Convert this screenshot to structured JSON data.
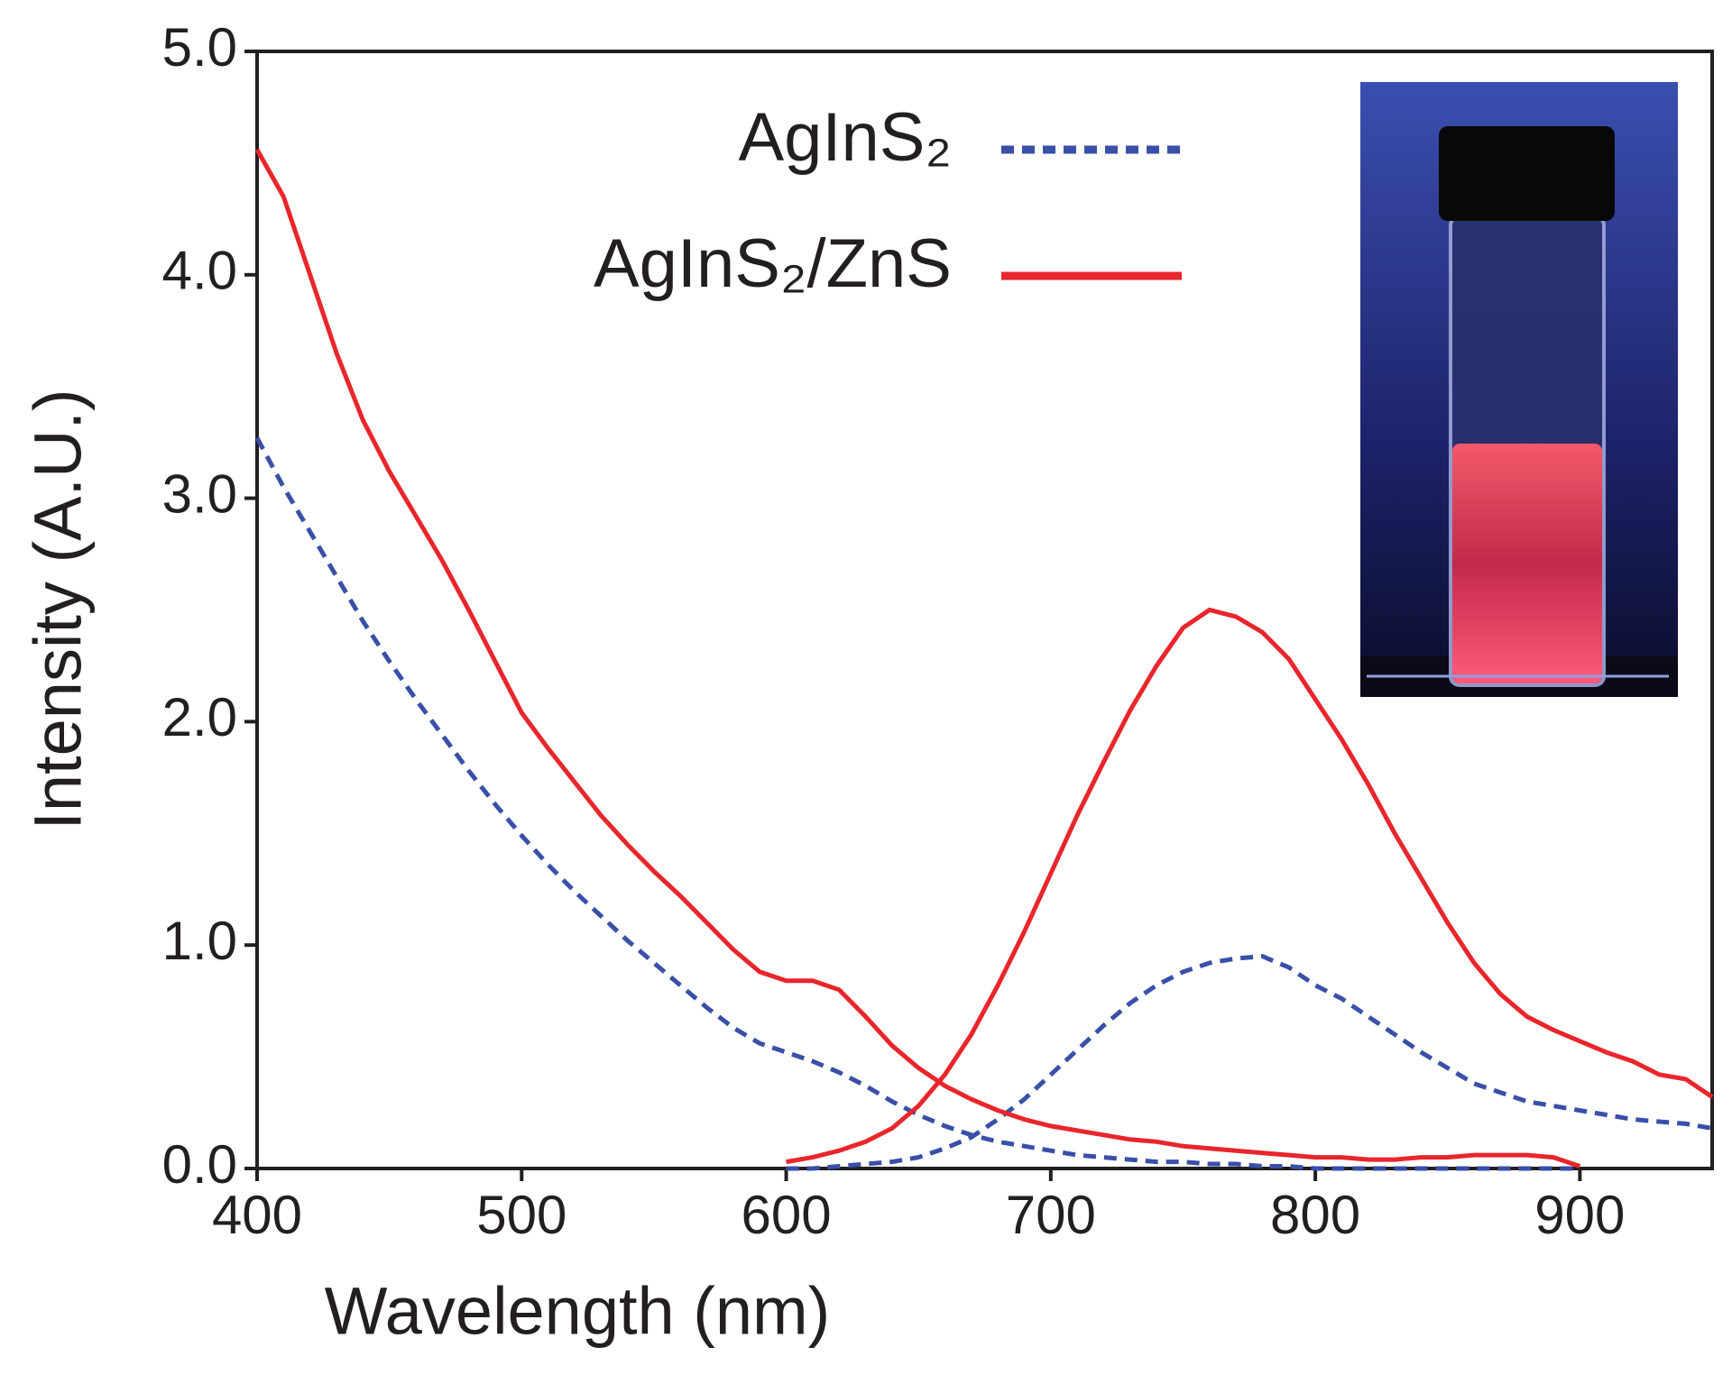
{
  "chart_data": {
    "type": "line",
    "x_label": "Wavelength (nm)",
    "y_label": "Intensity (A.U.)",
    "xlim": [
      400,
      950
    ],
    "ylim": [
      0,
      5
    ],
    "xticks": [
      400,
      500,
      600,
      700,
      800,
      900
    ],
    "yticks": [
      {
        "value": 0,
        "label": "0.0"
      },
      {
        "value": 1,
        "label": "1.0"
      },
      {
        "value": 2,
        "label": "2.0"
      },
      {
        "value": 3,
        "label": "3.0"
      },
      {
        "value": 4,
        "label": "4.0"
      },
      {
        "value": 5,
        "label": "5.0"
      }
    ],
    "x": [
      400,
      410,
      420,
      430,
      440,
      450,
      460,
      470,
      480,
      490,
      500,
      510,
      520,
      530,
      540,
      550,
      560,
      570,
      580,
      590,
      600,
      610,
      620,
      630,
      640,
      650,
      660,
      670,
      680,
      690,
      700,
      710,
      720,
      730,
      740,
      750,
      760,
      770,
      780,
      790,
      800,
      810,
      820,
      830,
      840,
      850,
      860,
      870,
      880,
      890,
      900,
      910,
      920,
      930,
      940,
      950
    ],
    "series": [
      {
        "name": "AgInS₂",
        "color": "#3a4fa8",
        "dash": "dashed",
        "values": [
          3.27,
          3.05,
          2.85,
          2.65,
          2.45,
          2.27,
          2.1,
          1.94,
          1.78,
          1.63,
          1.49,
          1.36,
          1.24,
          1.13,
          1.02,
          0.92,
          0.82,
          0.72,
          0.63,
          0.56,
          0.52,
          0.48,
          0.43,
          0.37,
          0.3,
          0.24,
          0.19,
          0.15,
          0.12,
          0.1,
          0.08,
          0.06,
          0.05,
          0.04,
          0.03,
          0.03,
          0.02,
          0.02,
          0.01,
          0.01,
          0,
          0,
          0,
          0,
          0,
          0,
          0,
          0,
          0,
          0,
          0,
          null,
          null,
          null,
          null,
          null
        ],
        "emission": [
          null,
          null,
          null,
          null,
          null,
          null,
          null,
          null,
          null,
          null,
          null,
          null,
          null,
          null,
          null,
          null,
          null,
          null,
          null,
          null,
          0,
          0,
          0.01,
          0.02,
          0.03,
          0.05,
          0.09,
          0.14,
          0.22,
          0.31,
          0.42,
          0.53,
          0.64,
          0.74,
          0.82,
          0.88,
          0.92,
          0.94,
          0.95,
          0.9,
          0.82,
          0.76,
          0.68,
          0.6,
          0.52,
          0.45,
          0.38,
          0.34,
          0.3,
          0.28,
          0.26,
          0.24,
          0.22,
          0.21,
          0.2,
          0.18
        ]
      },
      {
        "name": "AgInS₂/ZnS",
        "color": "#e8262c",
        "dash": "solid",
        "values": [
          4.56,
          4.35,
          4.0,
          3.65,
          3.35,
          3.12,
          2.92,
          2.72,
          2.5,
          2.27,
          2.04,
          1.88,
          1.73,
          1.58,
          1.45,
          1.33,
          1.22,
          1.1,
          0.98,
          0.88,
          0.84,
          0.84,
          0.8,
          0.68,
          0.55,
          0.45,
          0.37,
          0.31,
          0.26,
          0.22,
          0.19,
          0.17,
          0.15,
          0.13,
          0.12,
          0.1,
          0.09,
          0.08,
          0.07,
          0.06,
          0.05,
          0.05,
          0.04,
          0.04,
          0.05,
          0.05,
          0.06,
          0.06,
          0.06,
          0.05,
          0.01,
          null,
          null,
          null,
          null,
          null
        ],
        "emission": [
          null,
          null,
          null,
          null,
          null,
          null,
          null,
          null,
          null,
          null,
          null,
          null,
          null,
          null,
          null,
          null,
          null,
          null,
          null,
          null,
          0.03,
          0.05,
          0.08,
          0.12,
          0.18,
          0.28,
          0.42,
          0.6,
          0.82,
          1.06,
          1.32,
          1.58,
          1.82,
          2.05,
          2.25,
          2.42,
          2.5,
          2.47,
          2.4,
          2.28,
          2.1,
          1.92,
          1.72,
          1.5,
          1.3,
          1.1,
          0.92,
          0.78,
          0.68,
          0.62,
          0.57,
          0.52,
          0.48,
          0.42,
          0.4,
          0.32
        ]
      }
    ]
  }
}
